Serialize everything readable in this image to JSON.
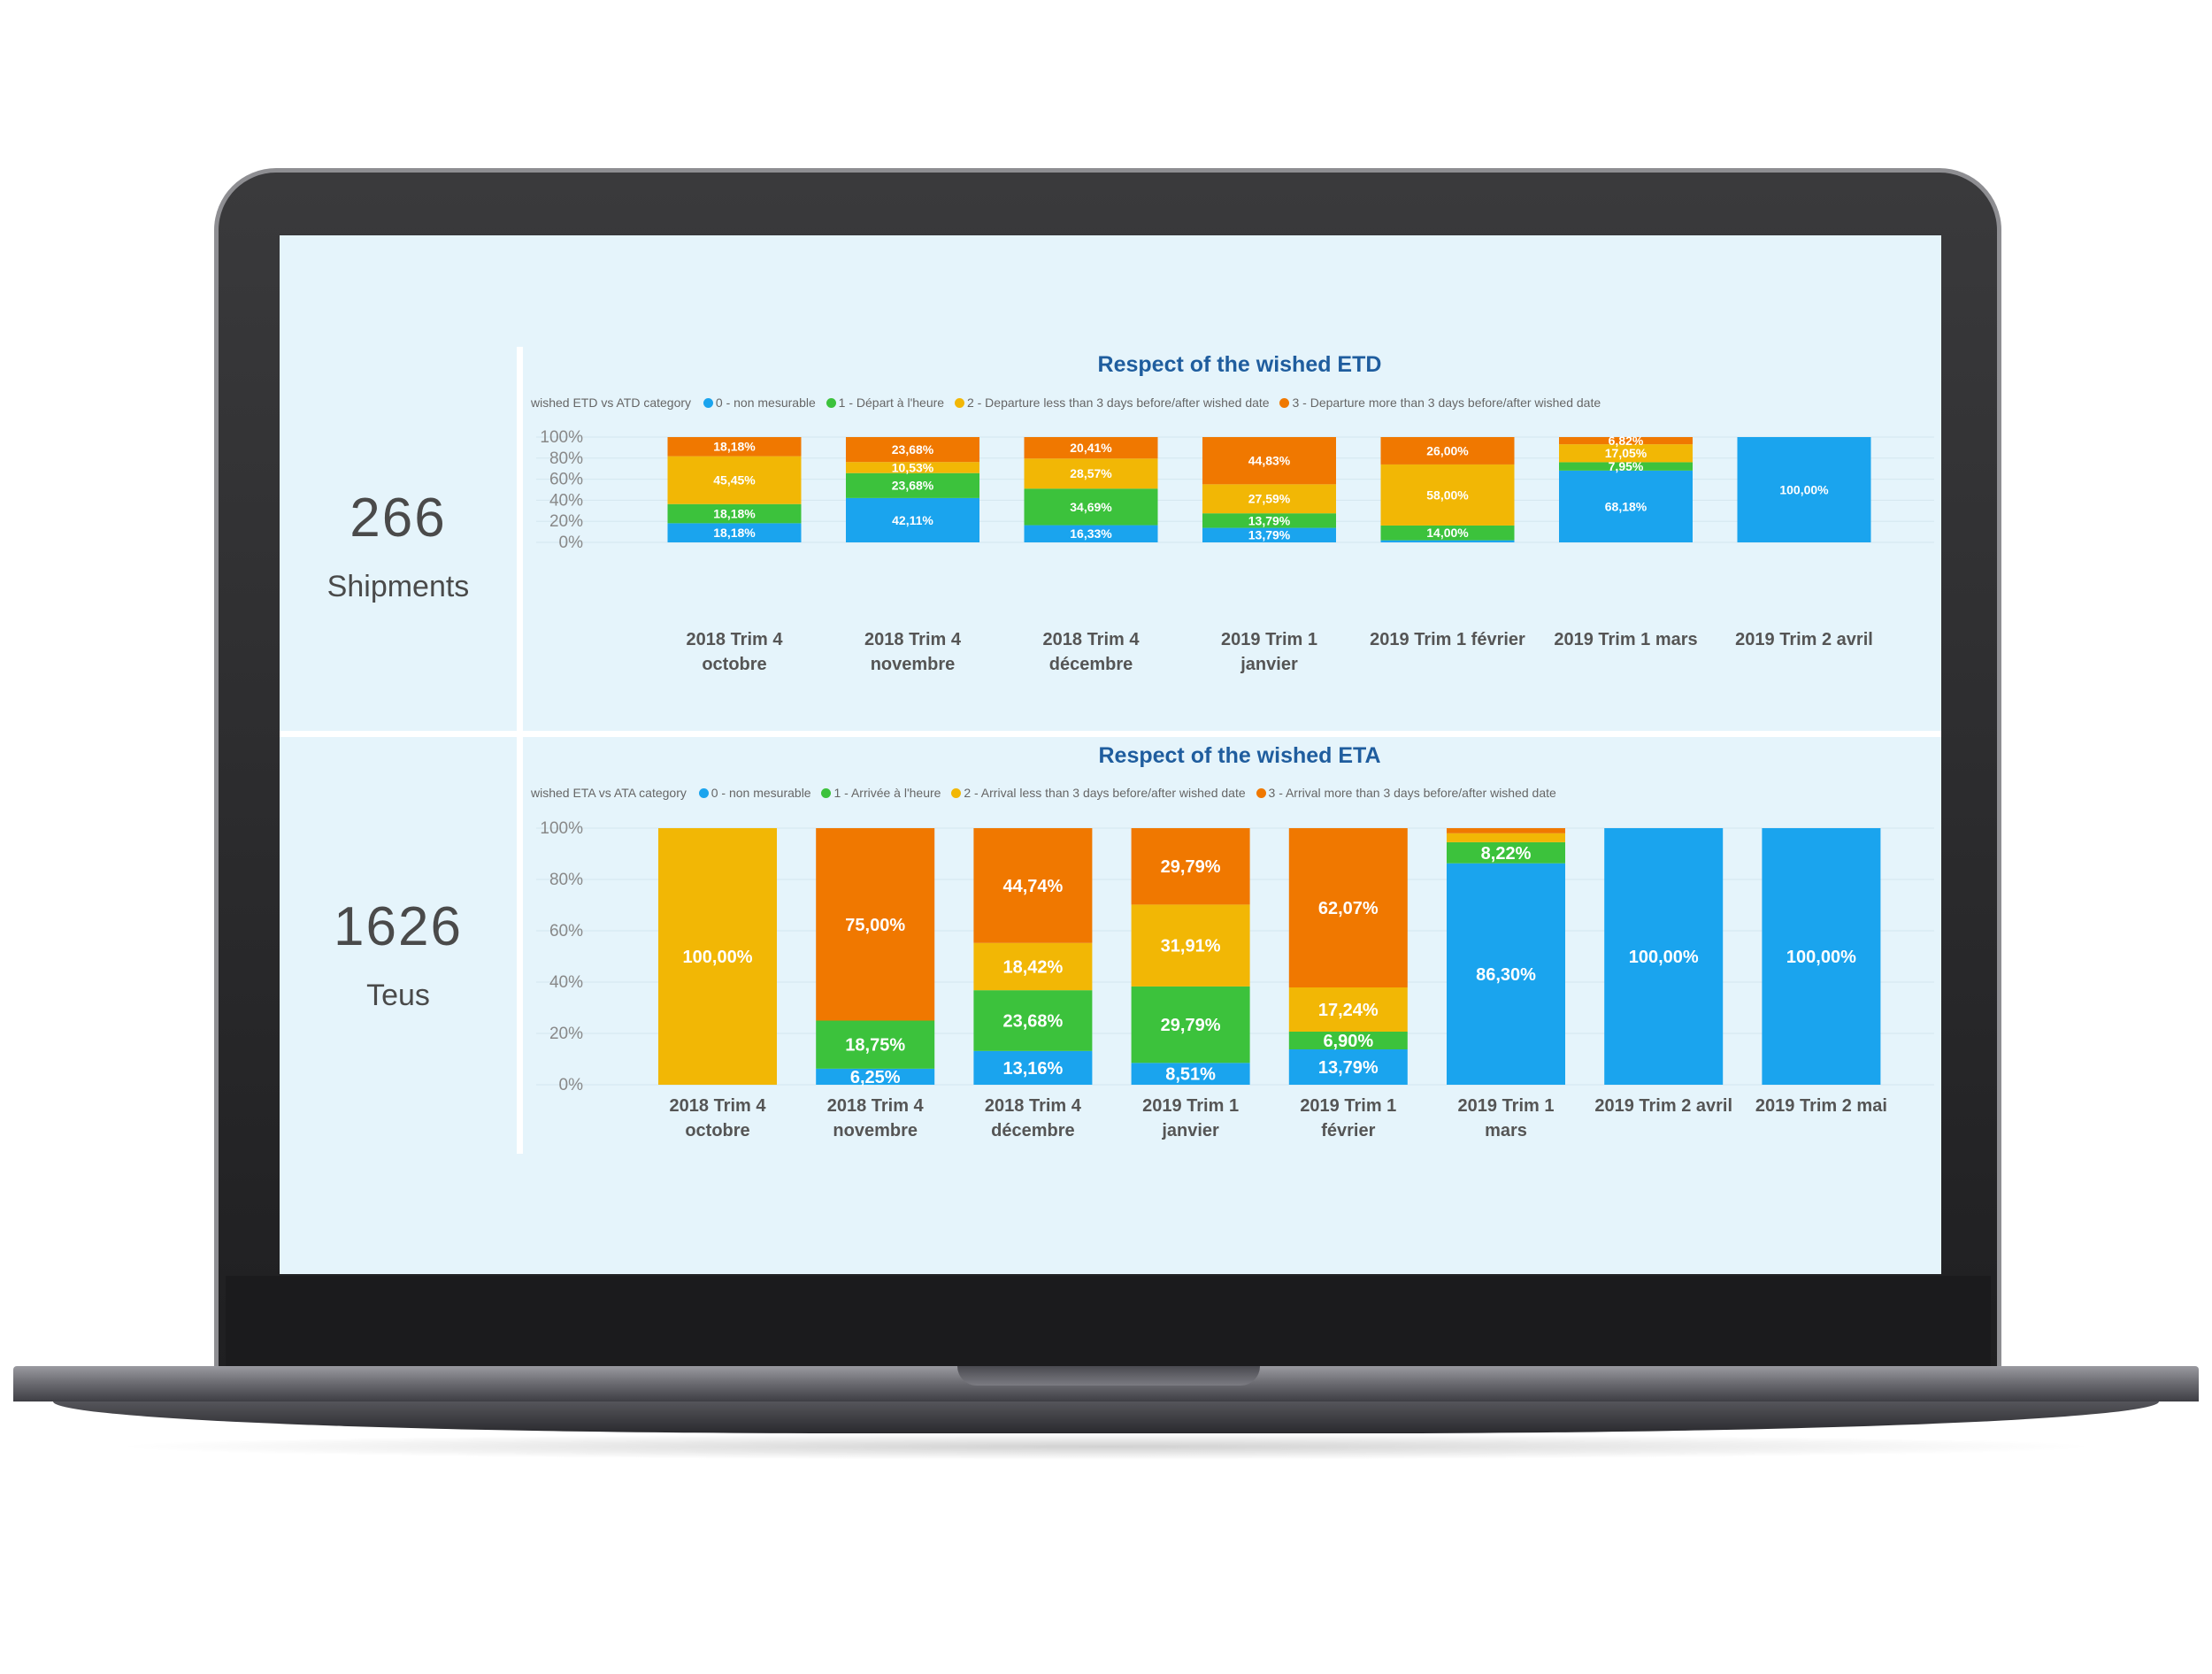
{
  "kpis": [
    {
      "value": "266",
      "label": "Shipments"
    },
    {
      "value": "1626",
      "label": "Teus"
    }
  ],
  "colors": {
    "cat0": "#1aa4ee",
    "cat1": "#3cc23c",
    "cat2": "#f2b705",
    "cat3": "#f07800",
    "screen_bg": "#e5f4fb",
    "title": "#1f5d9e"
  },
  "chart_data": [
    {
      "type": "bar",
      "stacked": true,
      "title": "Respect of the wished ETD",
      "legend_title": "wished ETD vs ATD category",
      "legend_position": "top-left",
      "ylim": [
        0,
        100
      ],
      "yticks": [
        "0%",
        "20%",
        "40%",
        "60%",
        "80%",
        "100%"
      ],
      "categories": [
        [
          "2018 Trim 4",
          "octobre"
        ],
        [
          "2018 Trim 4",
          "novembre"
        ],
        [
          "2018 Trim 4",
          "décembre"
        ],
        [
          "2019 Trim 1",
          "janvier"
        ],
        [
          "2019 Trim 1 février"
        ],
        [
          "2019 Trim 1 mars"
        ],
        [
          "2019 Trim 2 avril"
        ]
      ],
      "series": [
        {
          "name": "0 - non mesurable",
          "color": "#1aa4ee",
          "values": [
            18.18,
            42.11,
            16.33,
            13.79,
            2.0,
            68.18,
            100.0
          ],
          "labels": [
            "18,18%",
            "42,11%",
            "16,33%",
            "13,79%",
            "",
            "68,18%",
            "100,00%"
          ]
        },
        {
          "name": "1 - Départ à l'heure",
          "color": "#3cc23c",
          "values": [
            18.18,
            23.68,
            34.69,
            13.79,
            14.0,
            7.95,
            0
          ],
          "labels": [
            "18,18%",
            "23,68%",
            "34,69%",
            "13,79%",
            "14,00%",
            "7,95%",
            ""
          ]
        },
        {
          "name": "2 - Departure less than 3 days before/after wished date",
          "color": "#f2b705",
          "values": [
            45.45,
            10.53,
            28.57,
            27.59,
            58.0,
            17.05,
            0
          ],
          "labels": [
            "45,45%",
            "10,53%",
            "28,57%",
            "27,59%",
            "58,00%",
            "17,05%",
            ""
          ]
        },
        {
          "name": "3 - Departure more than 3 days before/after wished date",
          "color": "#f07800",
          "values": [
            18.18,
            23.68,
            20.41,
            44.83,
            26.0,
            6.82,
            0
          ],
          "labels": [
            "18,18%",
            "23,68%",
            "20,41%",
            "44,83%",
            "26,00%",
            "6,82%",
            ""
          ]
        }
      ]
    },
    {
      "type": "bar",
      "stacked": true,
      "title": "Respect of the wished ETA",
      "legend_title": "wished ETA vs ATA category",
      "legend_position": "top-left",
      "ylim": [
        0,
        100
      ],
      "yticks": [
        "0%",
        "20%",
        "40%",
        "60%",
        "80%",
        "100%"
      ],
      "categories": [
        [
          "2018 Trim 4",
          "octobre"
        ],
        [
          "2018 Trim 4",
          "novembre"
        ],
        [
          "2018 Trim 4",
          "décembre"
        ],
        [
          "2019 Trim 1",
          "janvier"
        ],
        [
          "2019 Trim 1",
          "février"
        ],
        [
          "2019 Trim 1",
          "mars"
        ],
        [
          "2019 Trim 2 avril"
        ],
        [
          "2019 Trim 2 mai"
        ]
      ],
      "series": [
        {
          "name": "0 - non mesurable",
          "color": "#1aa4ee",
          "values": [
            0,
            6.25,
            13.16,
            8.51,
            13.79,
            86.3,
            100.0,
            100.0
          ],
          "labels": [
            "",
            "6,25%",
            "13,16%",
            "8,51%",
            "13,79%",
            "86,30%",
            "100,00%",
            "100,00%"
          ]
        },
        {
          "name": "1 - Arrivée à l'heure",
          "color": "#3cc23c",
          "values": [
            0,
            18.75,
            23.68,
            29.79,
            6.9,
            8.22,
            0,
            0
          ],
          "labels": [
            "",
            "18,75%",
            "23,68%",
            "29,79%",
            "6,90%",
            "8,22%",
            "",
            ""
          ]
        },
        {
          "name": "2 - Arrival less than 3 days before/after wished date",
          "color": "#f2b705",
          "values": [
            100.0,
            0,
            18.42,
            31.91,
            17.24,
            3.48,
            0,
            0
          ],
          "labels": [
            "100,00%",
            "",
            "18,42%",
            "31,91%",
            "17,24%",
            "",
            "",
            ""
          ]
        },
        {
          "name": "3 - Arrival more than 3 days before/after wished date",
          "color": "#f07800",
          "values": [
            0,
            75.0,
            44.74,
            29.79,
            62.07,
            2.0,
            0,
            0
          ],
          "labels": [
            "",
            "75,00%",
            "44,74%",
            "29,79%",
            "62,07%",
            "",
            "",
            ""
          ]
        }
      ]
    }
  ]
}
